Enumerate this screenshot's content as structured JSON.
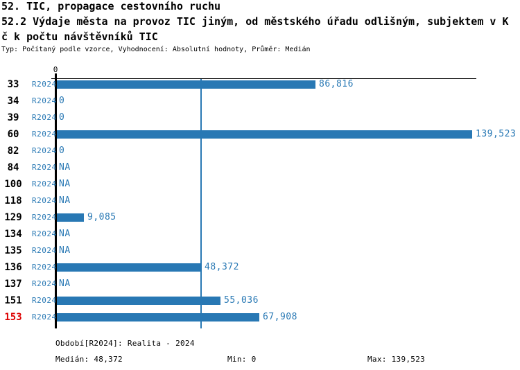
{
  "header": {
    "title_line1": "52. TIC, propagace cestovního ruchu",
    "title_line2": "52.2 Výdaje města na provoz TIC jiným, od městského úřadu odlišným, subjektem v K",
    "title_line3": "č k počtu návštěvníků TIC",
    "meta_line": "Typ: Počítaný podle vzorce, Vyhodnocení: Absolutní hodnoty, Průměr: Medián"
  },
  "chart_data": {
    "type": "bar",
    "orientation": "horizontal",
    "axis_top_tick_label": "0",
    "series_label": "R2024",
    "categories": [
      "33",
      "34",
      "39",
      "60",
      "82",
      "84",
      "100",
      "118",
      "129",
      "134",
      "135",
      "136",
      "137",
      "151",
      "153"
    ],
    "values": [
      86816,
      0,
      0,
      139523,
      0,
      null,
      null,
      null,
      9085,
      null,
      null,
      48372,
      null,
      55036,
      67908
    ],
    "value_labels": [
      "86,816",
      "0",
      "0",
      "139,523",
      "0",
      "NA",
      "NA",
      "NA",
      "9,085",
      "NA",
      "NA",
      "48,372",
      "NA",
      "55,036",
      "67,908"
    ],
    "highlighted_category": "153",
    "median_value": 48372,
    "xlim": [
      0,
      139523
    ],
    "legend_position": "none",
    "grid": "median-line-only",
    "colors": {
      "bar": "#2878b4",
      "median_line": "#2878b4",
      "value_text": "#2878b4",
      "series_text": "#2878b4",
      "category_text": "#000000",
      "highlighted_category_text": "#dd0000",
      "axis": "#000000"
    }
  },
  "footer": {
    "period_label": "Období[R2024]: Realita - 2024",
    "median_label": "Medián: 48,372",
    "min_label": "Min: 0",
    "max_label": "Max: 139,523"
  }
}
